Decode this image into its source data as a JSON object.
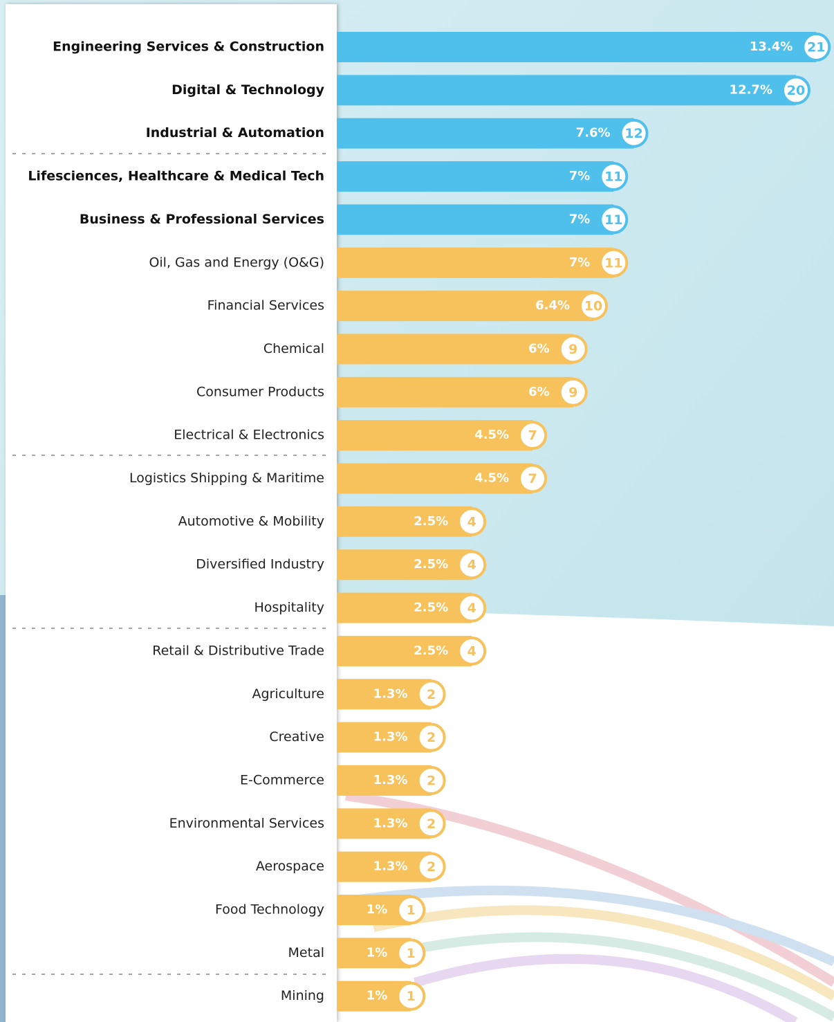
{
  "chart_data": {
    "type": "bar",
    "categories": [
      "Engineering Services & Construction",
      "Digital & Technology",
      "Industrial & Automation",
      "Lifesciences, Healthcare & Medical Tech",
      "Business & Professional Services",
      "Oil, Gas and Energy (O&G)",
      "Financial Services",
      "Chemical",
      "Consumer Products",
      "Electrical & Electronics",
      "Logistics Shipping & Maritime",
      "Automotive & Mobility",
      "Diversified Industry",
      "Hospitality",
      "Retail & Distributive Trade",
      "Agriculture",
      "Creative",
      "E-Commerce",
      "Environmental Services",
      "Aerospace",
      "Food Technology",
      "Metal",
      "Mining"
    ],
    "values": [
      13.4,
      12.7,
      7.6,
      7,
      7,
      7,
      6.4,
      6,
      6,
      4.5,
      4.5,
      2.5,
      2.5,
      2.5,
      2.5,
      1.3,
      1.3,
      1.3,
      1.3,
      1.3,
      1,
      1,
      1
    ],
    "value_labels": [
      "13.4%",
      "12.7%",
      "7.6%",
      "7%",
      "7%",
      "7%",
      "6.4%",
      "6%",
      "6%",
      "4.5%",
      "4.5%",
      "2.5%",
      "2.5%",
      "2.5%",
      "2.5%",
      "1.3%",
      "1.3%",
      "1.3%",
      "1.3%",
      "1.3%",
      "1%",
      "1%",
      "1%"
    ],
    "counts": [
      21,
      20,
      12,
      11,
      11,
      11,
      10,
      9,
      9,
      7,
      7,
      4,
      4,
      4,
      4,
      2,
      2,
      2,
      2,
      2,
      1,
      1,
      1
    ],
    "colors": [
      "#4fc0ec",
      "#4fc0ec",
      "#4fc0ec",
      "#4fc0ec",
      "#4fc0ec",
      "#f7c15c",
      "#f7c15c",
      "#f7c15c",
      "#f7c15c",
      "#f7c15c",
      "#f7c15c",
      "#f7c15c",
      "#f7c15c",
      "#f7c15c",
      "#f7c15c",
      "#f7c15c",
      "#f7c15c",
      "#f7c15c",
      "#f7c15c",
      "#f7c15c",
      "#f7c15c",
      "#f7c15c",
      "#f7c15c"
    ]
  }
}
